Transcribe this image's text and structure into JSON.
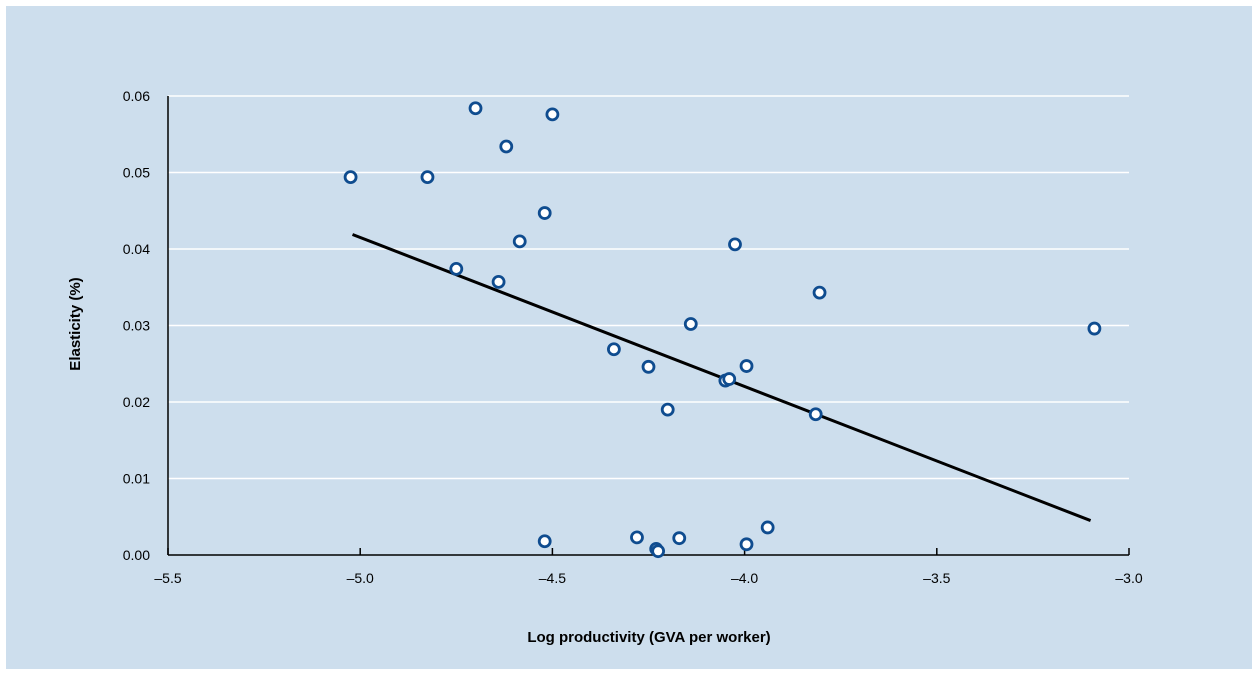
{
  "chart_data": {
    "type": "scatter",
    "title": "",
    "xlabel": "Log productivity (GVA per worker)",
    "ylabel": "Elasticity (%)",
    "xlim": [
      -5.5,
      -3.0
    ],
    "ylim": [
      0.0,
      0.06
    ],
    "x_ticks": [
      -5.5,
      -5.0,
      -4.5,
      -4.0,
      -3.5,
      -3.0
    ],
    "x_tick_labels": [
      "–5.5",
      "–5.0",
      "–4.5",
      "–4.0",
      "–3.5",
      "–3.0"
    ],
    "y_ticks": [
      0.0,
      0.01,
      0.02,
      0.03,
      0.04,
      0.05,
      0.06
    ],
    "y_tick_labels": [
      "0.00",
      "0.01",
      "0.02",
      "0.03",
      "0.04",
      "0.05",
      "0.06"
    ],
    "grid": "horizontal",
    "background_color": "#cddeed",
    "marker_color": "#0f4c8f",
    "trendline_color": "#000000",
    "points": [
      {
        "x": -5.025,
        "y": 0.0494
      },
      {
        "x": -4.825,
        "y": 0.0494
      },
      {
        "x": -4.7,
        "y": 0.0584
      },
      {
        "x": -4.5,
        "y": 0.0576
      },
      {
        "x": -4.62,
        "y": 0.0534
      },
      {
        "x": -4.52,
        "y": 0.0447
      },
      {
        "x": -4.585,
        "y": 0.041
      },
      {
        "x": -4.75,
        "y": 0.0374
      },
      {
        "x": -4.64,
        "y": 0.0357
      },
      {
        "x": -4.025,
        "y": 0.0406
      },
      {
        "x": -3.805,
        "y": 0.0343
      },
      {
        "x": -3.09,
        "y": 0.0296
      },
      {
        "x": -4.14,
        "y": 0.0302
      },
      {
        "x": -4.34,
        "y": 0.0269
      },
      {
        "x": -4.25,
        "y": 0.0246
      },
      {
        "x": -3.995,
        "y": 0.0247
      },
      {
        "x": -4.05,
        "y": 0.0228
      },
      {
        "x": -4.04,
        "y": 0.023
      },
      {
        "x": -4.2,
        "y": 0.019
      },
      {
        "x": -3.815,
        "y": 0.0184
      },
      {
        "x": -4.52,
        "y": 0.0018
      },
      {
        "x": -4.28,
        "y": 0.0023
      },
      {
        "x": -4.17,
        "y": 0.0022
      },
      {
        "x": -4.23,
        "y": 0.0008
      },
      {
        "x": -4.225,
        "y": 0.0005
      },
      {
        "x": -3.995,
        "y": 0.0014
      },
      {
        "x": -3.94,
        "y": 0.0036
      }
    ],
    "trendline": {
      "x": [
        -5.02,
        -3.1
      ],
      "y": [
        0.0419,
        0.0045
      ]
    }
  }
}
